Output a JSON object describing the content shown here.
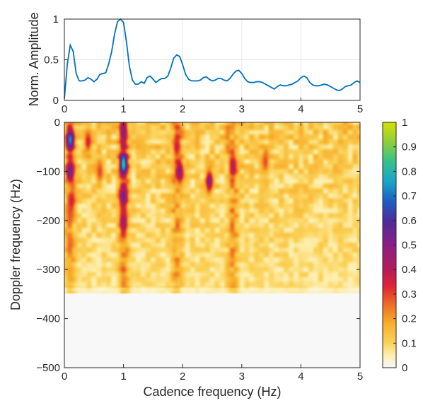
{
  "chart_data": [
    {
      "type": "line",
      "title": "",
      "xlabel": "",
      "ylabel": "Norm. Amplitude",
      "xlim": [
        0,
        5
      ],
      "ylim": [
        0,
        1
      ],
      "xticks": [
        "0",
        "1",
        "2",
        "3",
        "4",
        "5"
      ],
      "yticks": [
        "0",
        "0.5",
        "1"
      ],
      "grid": true,
      "line_color": "#0072bd",
      "series": [
        {
          "x": [
            0,
            0.05,
            0.1,
            0.15,
            0.2,
            0.25,
            0.3,
            0.35,
            0.4,
            0.45,
            0.5,
            0.55,
            0.6,
            0.65,
            0.7,
            0.75,
            0.8,
            0.85,
            0.9,
            0.95,
            1.0,
            1.05,
            1.1,
            1.15,
            1.2,
            1.25,
            1.3,
            1.35,
            1.4,
            1.45,
            1.5,
            1.55,
            1.6,
            1.65,
            1.7,
            1.75,
            1.8,
            1.85,
            1.9,
            1.95,
            2.0,
            2.05,
            2.1,
            2.15,
            2.2,
            2.25,
            2.3,
            2.35,
            2.4,
            2.45,
            2.5,
            2.55,
            2.6,
            2.65,
            2.7,
            2.75,
            2.8,
            2.85,
            2.9,
            2.95,
            3.0,
            3.05,
            3.1,
            3.15,
            3.2,
            3.25,
            3.3,
            3.35,
            3.4,
            3.45,
            3.5,
            3.55,
            3.6,
            3.65,
            3.7,
            3.75,
            3.8,
            3.85,
            3.9,
            3.95,
            4.0,
            4.05,
            4.1,
            4.15,
            4.2,
            4.25,
            4.3,
            4.35,
            4.4,
            4.45,
            4.5,
            4.55,
            4.6,
            4.65,
            4.7,
            4.75,
            4.8,
            4.85,
            4.9,
            4.95,
            5.0
          ],
          "values": [
            0.02,
            0.45,
            0.68,
            0.6,
            0.33,
            0.24,
            0.24,
            0.25,
            0.28,
            0.26,
            0.23,
            0.26,
            0.32,
            0.33,
            0.34,
            0.45,
            0.6,
            0.82,
            0.97,
            1.0,
            0.96,
            0.72,
            0.42,
            0.25,
            0.2,
            0.2,
            0.23,
            0.21,
            0.28,
            0.3,
            0.26,
            0.22,
            0.25,
            0.27,
            0.27,
            0.3,
            0.4,
            0.52,
            0.56,
            0.54,
            0.44,
            0.32,
            0.26,
            0.24,
            0.24,
            0.24,
            0.25,
            0.28,
            0.29,
            0.26,
            0.24,
            0.25,
            0.27,
            0.27,
            0.25,
            0.24,
            0.27,
            0.32,
            0.36,
            0.37,
            0.33,
            0.27,
            0.23,
            0.22,
            0.22,
            0.23,
            0.23,
            0.22,
            0.2,
            0.18,
            0.16,
            0.14,
            0.17,
            0.19,
            0.18,
            0.18,
            0.19,
            0.2,
            0.22,
            0.24,
            0.28,
            0.3,
            0.28,
            0.22,
            0.19,
            0.18,
            0.18,
            0.19,
            0.2,
            0.19,
            0.17,
            0.15,
            0.13,
            0.12,
            0.14,
            0.17,
            0.18,
            0.19,
            0.22,
            0.24,
            0.22
          ]
        }
      ]
    },
    {
      "type": "heatmap",
      "title": "",
      "xlabel": "Cadence frequency (Hz)",
      "ylabel": "Doppler frequency (Hz)",
      "xlim": [
        0,
        5
      ],
      "ylim": [
        -500,
        0
      ],
      "xticks": [
        "0",
        "1",
        "2",
        "3",
        "4",
        "5"
      ],
      "yticks": [
        "0",
        "-100",
        "-200",
        "-300",
        "-400",
        "-500"
      ],
      "color_scale": {
        "min": 0,
        "max": 1,
        "ticks": [
          "0",
          "0.1",
          "0.2",
          "0.3",
          "0.4",
          "0.5",
          "0.6",
          "0.7",
          "0.8",
          "0.9",
          "1"
        ],
        "stops": [
          {
            "v": 0.0,
            "color": "#f8f8f8"
          },
          {
            "v": 0.05,
            "color": "#fdefb0"
          },
          {
            "v": 0.1,
            "color": "#fbd35a"
          },
          {
            "v": 0.18,
            "color": "#f7ae2a"
          },
          {
            "v": 0.26,
            "color": "#ef6b26"
          },
          {
            "v": 0.33,
            "color": "#df2433"
          },
          {
            "v": 0.4,
            "color": "#b51c5a"
          },
          {
            "v": 0.5,
            "color": "#8a1e86"
          },
          {
            "v": 0.6,
            "color": "#4d2c9c"
          },
          {
            "v": 0.68,
            "color": "#1d5fc2"
          },
          {
            "v": 0.76,
            "color": "#1ba5c8"
          },
          {
            "v": 0.84,
            "color": "#35c28a"
          },
          {
            "v": 0.92,
            "color": "#8fcf3a"
          },
          {
            "v": 1.0,
            "color": "#d6e000"
          }
        ]
      },
      "empty_below_hz": -350,
      "peaks": [
        {
          "x": 0.1,
          "y": -35,
          "value": 0.75
        },
        {
          "x": 0.1,
          "y": -100,
          "value": 0.55
        },
        {
          "x": 0.12,
          "y": -160,
          "value": 0.35
        },
        {
          "x": 1.0,
          "y": -85,
          "value": 0.85
        },
        {
          "x": 1.0,
          "y": -150,
          "value": 0.55
        },
        {
          "x": 1.0,
          "y": -20,
          "value": 0.5
        },
        {
          "x": 1.0,
          "y": -200,
          "value": 0.45
        },
        {
          "x": 1.95,
          "y": -100,
          "value": 0.5
        },
        {
          "x": 1.9,
          "y": -50,
          "value": 0.35
        },
        {
          "x": 2.45,
          "y": -120,
          "value": 0.5
        },
        {
          "x": 2.85,
          "y": -90,
          "value": 0.4
        },
        {
          "x": 0.4,
          "y": -40,
          "value": 0.35
        },
        {
          "x": 0.6,
          "y": -100,
          "value": 0.3
        },
        {
          "x": 3.4,
          "y": -80,
          "value": 0.3
        }
      ]
    }
  ]
}
